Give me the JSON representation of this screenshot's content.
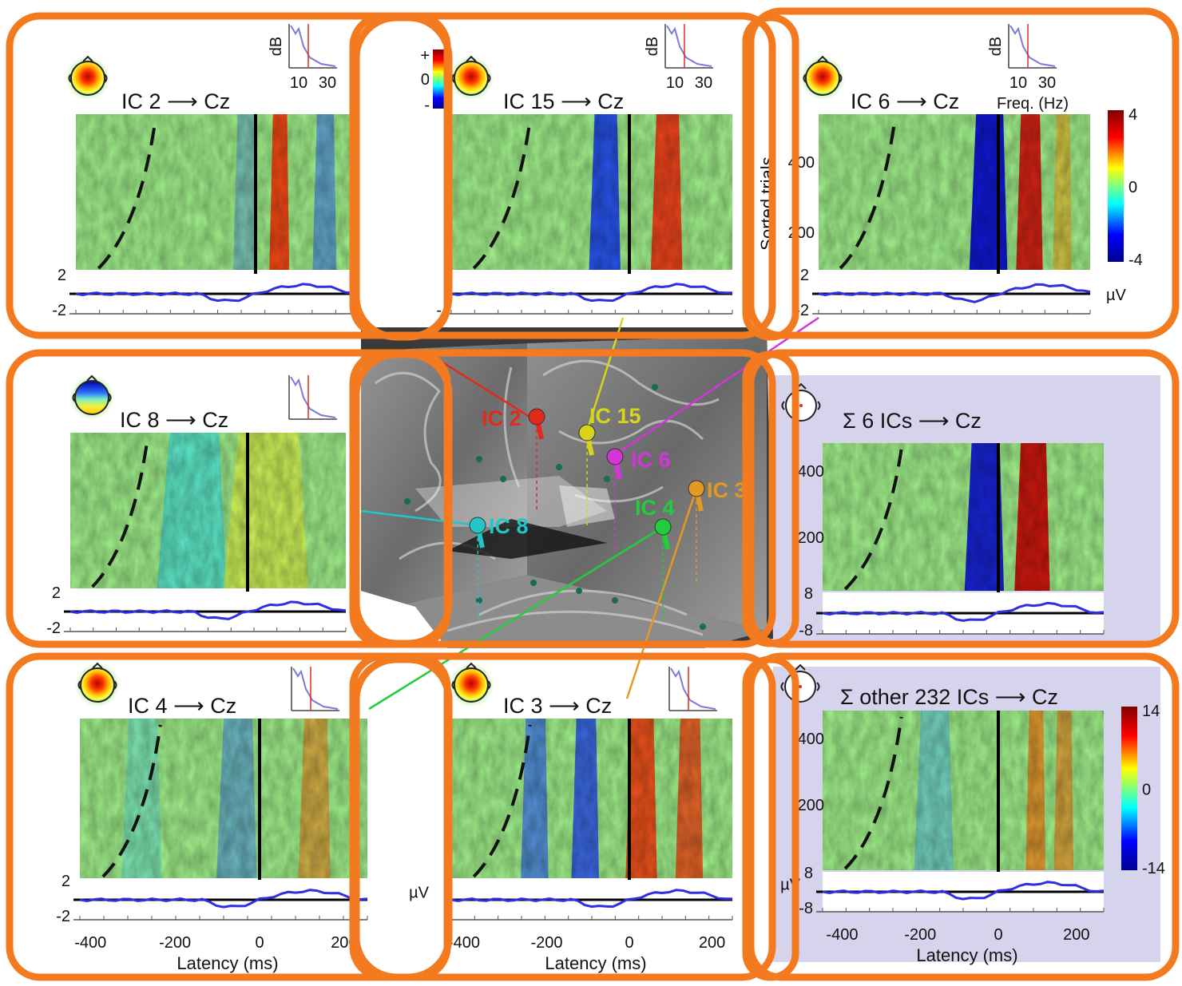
{
  "panels": {
    "ic2": {
      "title": "IC 2 ⟶ Cz",
      "ytop": "2",
      "ybot": "-2"
    },
    "ic15": {
      "title": "IC 15 ⟶ Cz",
      "ybot": "-"
    },
    "ic6": {
      "title": "IC 6 ⟶ Cz",
      "ytop": "2",
      "ybot": "-2",
      "unit": "µV"
    },
    "ic8": {
      "title": "IC 8 ⟶ Cz",
      "ytop": "2",
      "ybot": "-2"
    },
    "sum6": {
      "title": "Σ  6 ICs ⟶ Cz",
      "ytop": "8",
      "ybot": "-8",
      "trial_ticks": [
        "400",
        "200"
      ]
    },
    "ic4": {
      "title": "IC 4 ⟶ Cz",
      "ytop": "2",
      "ybot": "-2"
    },
    "ic3": {
      "title": "IC 3 ⟶ Cz",
      "unit": "µV"
    },
    "sum232": {
      "title": "Σ other 232 ICs ⟶ Cz",
      "ytop": "8",
      "ybot": "-8",
      "unit": "µV",
      "trial_ticks": [
        "400",
        "200"
      ]
    }
  },
  "spectrum": {
    "ylabel": "dB",
    "ticks": [
      "10",
      "30"
    ],
    "xlabel": "Freq. (Hz)"
  },
  "trials_axis": {
    "label": "Sorted trials",
    "ticks": [
      "400",
      "200"
    ]
  },
  "latency_axis": {
    "label": "Latency (ms)",
    "ticks": [
      "-400",
      "-200",
      "0",
      "200"
    ]
  },
  "colorbars": {
    "small": {
      "plus": "+",
      "zero": "0",
      "minus": "-"
    },
    "ic6": {
      "max": "4",
      "mid": "0",
      "min": "-4"
    },
    "sum232": {
      "max": "14",
      "mid": "0",
      "min": "-14"
    }
  },
  "brain_labels": {
    "ic2": "IC 2",
    "ic15": "IC 15",
    "ic6": "IC 6",
    "ic8": "IC 8",
    "ic4": "IC 4",
    "ic3": "IC 3"
  },
  "colors": {
    "frame": "#f47a20",
    "summary_bg": "#d6d4ec",
    "erp": "#2f2ee0",
    "ic2": "#e02a1c",
    "ic15": "#d8d41c",
    "ic6": "#d236d8",
    "ic8": "#22c6c6",
    "ic4": "#22cc3a",
    "ic3": "#e49a22"
  }
}
